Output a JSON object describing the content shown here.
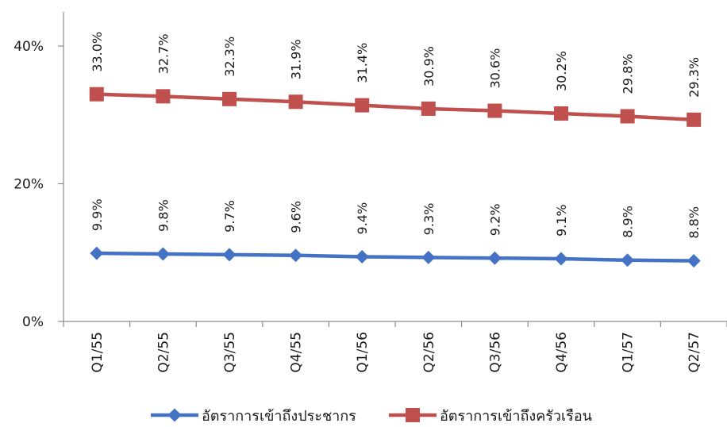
{
  "chart_data": {
    "type": "line",
    "categories": [
      "Q1/55",
      "Q2/55",
      "Q3/55",
      "Q4/55",
      "Q1/56",
      "Q2/56",
      "Q3/56",
      "Q4/56",
      "Q1/57",
      "Q2/57"
    ],
    "ylim": [
      0,
      40
    ],
    "yticks": [
      "0%",
      "20%",
      "40%"
    ],
    "grid": false,
    "legend_position": "bottom",
    "series": [
      {
        "name": "อัตราการเข้าถึงประชากร",
        "color": "#4472c4",
        "marker": "diamond",
        "values": [
          9.9,
          9.8,
          9.7,
          9.6,
          9.4,
          9.3,
          9.2,
          9.1,
          8.9,
          8.8
        ],
        "labels": [
          "9.9%",
          "9.8%",
          "9.7%",
          "9.6%",
          "9.4%",
          "9.3%",
          "9.2%",
          "9.1%",
          "8.9%",
          "8.8%"
        ]
      },
      {
        "name": "อัตราการเข้าถึงครัวเรือน",
        "color": "#c0504d",
        "marker": "square",
        "values": [
          33.0,
          32.7,
          32.3,
          31.9,
          31.4,
          30.9,
          30.6,
          30.2,
          29.8,
          29.3
        ],
        "labels": [
          "33.0%",
          "32.7%",
          "32.3%",
          "31.9%",
          "31.4%",
          "30.9%",
          "30.6%",
          "30.2%",
          "29.8%",
          "29.3%"
        ]
      }
    ]
  }
}
